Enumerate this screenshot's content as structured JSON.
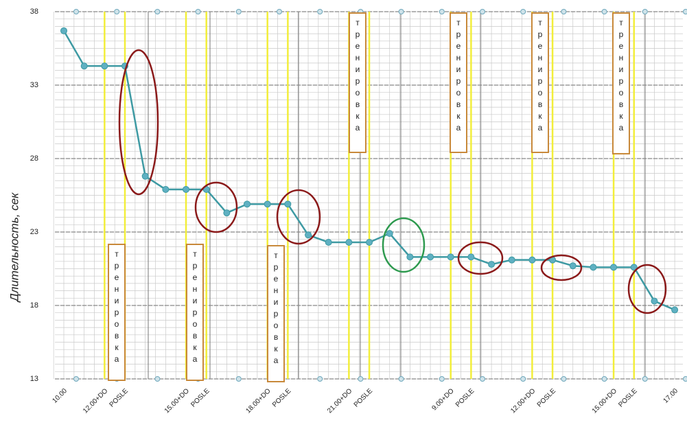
{
  "chart_data": {
    "type": "line",
    "y_label": "Длительность, сек",
    "categories": [
      "10.00",
      null,
      "12.00+DO",
      "POSLE",
      null,
      null,
      "15.00+DO",
      "POSLE",
      null,
      null,
      "18.00+DO",
      "POSLE",
      null,
      null,
      "21.00+DO",
      "POSLE",
      null,
      null,
      null,
      "9.00+DO",
      "POSLE",
      null,
      null,
      "12.00+DO",
      "POSLE",
      null,
      null,
      "15.00+DO",
      "POSLE",
      null,
      "17.00"
    ],
    "values": [
      36.7,
      34.3,
      34.3,
      34.3,
      26.8,
      25.9,
      25.9,
      25.9,
      24.3,
      24.9,
      24.9,
      24.9,
      22.8,
      22.3,
      22.3,
      22.3,
      22.9,
      21.3,
      21.3,
      21.3,
      21.3,
      20.8,
      21.1,
      21.1,
      21.1,
      20.7,
      20.6,
      20.6,
      20.6,
      18.3,
      17.7
    ],
    "color": "#3e9aa3",
    "ylim": [
      13,
      38
    ],
    "yticks": [
      13,
      18,
      23,
      28,
      33,
      38
    ],
    "grid": true,
    "annotations": [
      "тренировка",
      "тренировка",
      "тренировка",
      "тренировка",
      "тренировка",
      "тренировка",
      "тренировка"
    ]
  }
}
